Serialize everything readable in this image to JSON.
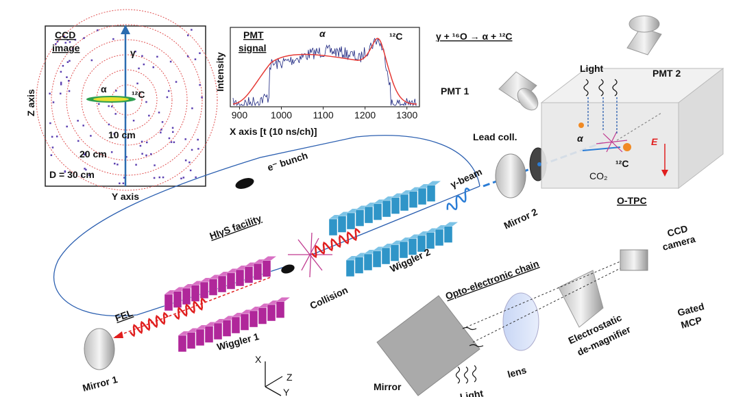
{
  "ccd_image": {
    "title": [
      "CCD",
      "image"
    ],
    "z_axis": "Z axis",
    "y_axis": "Y axis",
    "gamma": "γ",
    "alpha": "α",
    "carbon": "¹²C",
    "rings": [
      "10 cm",
      "20 cm",
      "D = 30 cm"
    ]
  },
  "pmt_signal": {
    "title": [
      "PMT",
      "signal"
    ],
    "y_label": "Intensity",
    "x_label": "X axis [t (10 ns/ch)]",
    "alpha": "α",
    "carbon": "¹²C",
    "xlim": [
      878,
      1330
    ],
    "xticks": [
      900,
      1000,
      1100,
      1200,
      1300
    ]
  },
  "reaction": "γ + ¹⁶O → α + ¹²C",
  "detector": {
    "light": "Light",
    "pmt1": "PMT 1",
    "pmt2": "PMT 2",
    "lead_coll": "Lead coll.",
    "alpha": "α",
    "carbon": "¹²C",
    "field": "E",
    "gas": "CO₂",
    "name": "O-TPC",
    "mirror2": "Mirror 2",
    "gamma_beam": "γ-beam"
  },
  "facility": {
    "name": "HIγS facility",
    "bunch": "e⁻ bunch",
    "wiggler2": "Wiggler 2",
    "collision": "Collision",
    "fel": "FEL",
    "wiggler1": "Wiggler 1",
    "mirror1": "Mirror 1"
  },
  "optics": {
    "title": "Opto-electronic chain",
    "camera": [
      "CCD",
      "camera"
    ],
    "mcp": [
      "Gated",
      "MCP"
    ],
    "demagnifier": [
      "Electrostatic",
      "de-magnifier"
    ],
    "lens": "lens",
    "mirror": "Mirror",
    "light": "Light"
  },
  "axes": {
    "x": "X",
    "y": "Y",
    "z": "Z"
  }
}
